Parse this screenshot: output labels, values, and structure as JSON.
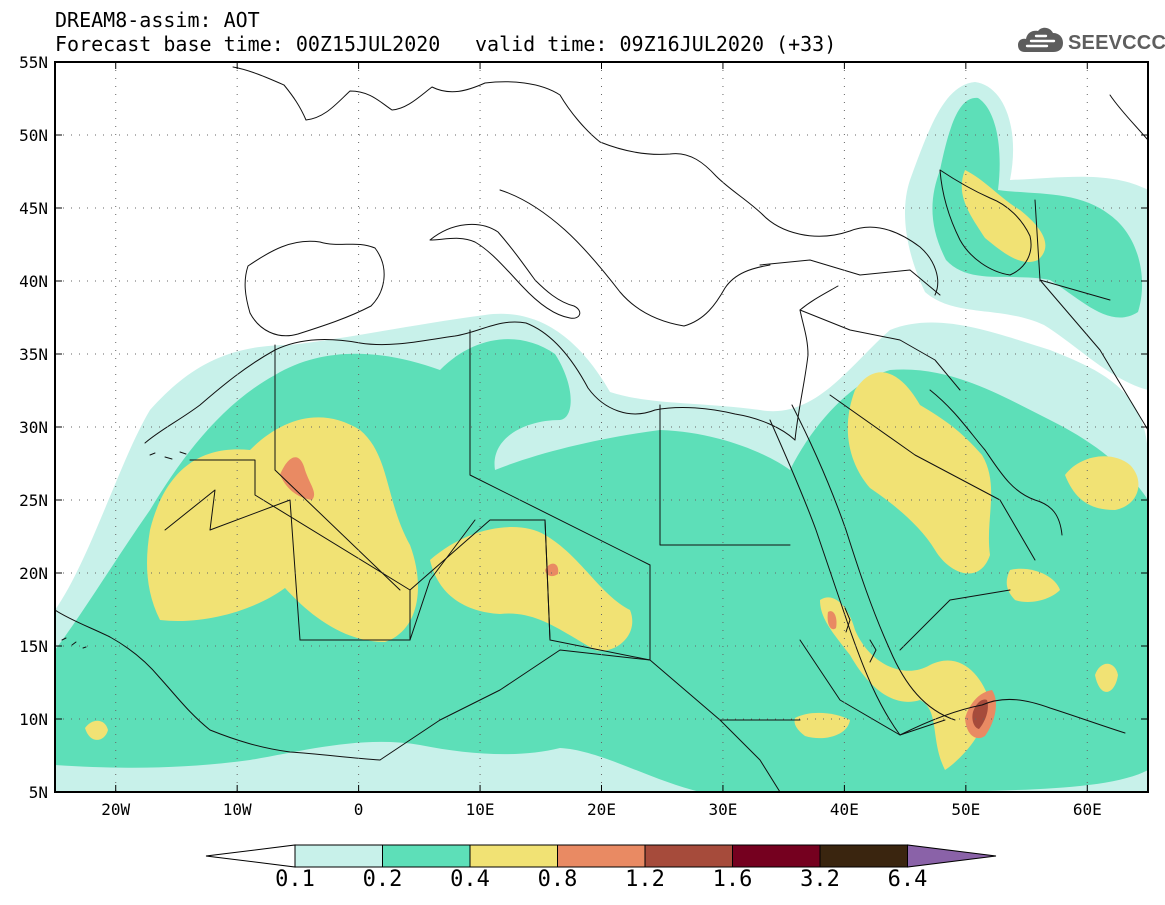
{
  "title": {
    "line1": "DREAM8-assim: AOT",
    "forecast_base": "Forecast base time: 00Z15JUL2020",
    "valid_time": "valid time: 09Z16JUL2020 (+33)"
  },
  "logo": {
    "text": "SEEVCCC",
    "icon": "cloud-icon"
  },
  "map": {
    "latitude_labels": [
      "55N",
      "50N",
      "45N",
      "40N",
      "35N",
      "30N",
      "25N",
      "20N",
      "15N",
      "10N",
      "5N"
    ],
    "longitude_labels": [
      "20W",
      "10W",
      "0",
      "10E",
      "20E",
      "30E",
      "40E",
      "50E",
      "60E"
    ],
    "grid": true
  },
  "colors": {
    "aot_01_02": "#c8f1ea",
    "aot_02_04": "#5ddfb8",
    "aot_04_08": "#f1e274",
    "aot_08_12": "#e98a63",
    "aot_12_16": "#a64b3b",
    "aot_16_32": "#75001f",
    "aot_32_64": "#3a250f",
    "aot_above_64": "#8a62a8"
  },
  "colorbar": {
    "labels": [
      "0.1",
      "0.2",
      "0.4",
      "0.8",
      "1.2",
      "1.6",
      "3.2",
      "6.4"
    ]
  }
}
